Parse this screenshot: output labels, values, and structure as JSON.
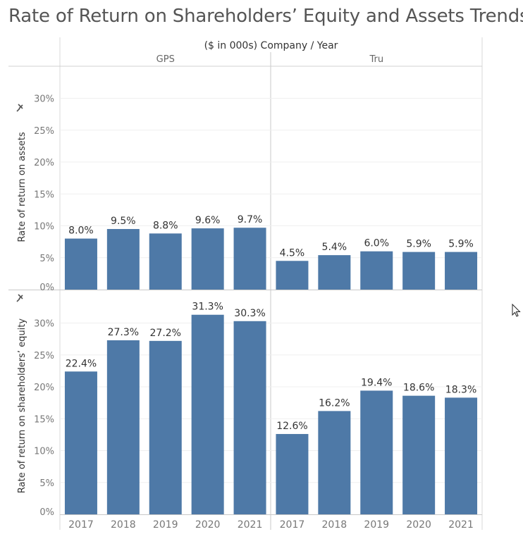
{
  "title": "Rate of Return on Shareholders’ Equity and Assets Trends",
  "chart_data": {
    "type": "bar",
    "header": "($ in 000s)  Company  /  Year",
    "companies": [
      "GPS",
      "Tru"
    ],
    "years": [
      "2017",
      "2018",
      "2019",
      "2020",
      "2021"
    ],
    "bar_color": "#4e79a7",
    "grid": true,
    "panels": [
      {
        "ylabel": "Rate of return on assets",
        "ylim": [
          0,
          0.345
        ],
        "yticks": [
          0,
          0.05,
          0.1,
          0.15,
          0.2,
          0.25,
          0.3
        ],
        "ytick_labels": [
          "0%",
          "5%",
          "10%",
          "15%",
          "20%",
          "25%",
          "30%"
        ],
        "series": [
          {
            "company": "GPS",
            "values": [
              0.08,
              0.095,
              0.088,
              0.096,
              0.097
            ],
            "labels": [
              "8.0%",
              "9.5%",
              "8.8%",
              "9.6%",
              "9.7%"
            ]
          },
          {
            "company": "Tru",
            "values": [
              0.045,
              0.054,
              0.06,
              0.059,
              0.059
            ],
            "labels": [
              "4.5%",
              "5.4%",
              "6.0%",
              "5.9%",
              "5.9%"
            ]
          }
        ]
      },
      {
        "ylabel": "Rate of return on shareholders’ equity",
        "ylim": [
          0,
          0.345
        ],
        "yticks": [
          0,
          0.05,
          0.1,
          0.15,
          0.2,
          0.25,
          0.3
        ],
        "ytick_labels": [
          "0%",
          "5%",
          "10%",
          "15%",
          "20%",
          "25%",
          "30%"
        ],
        "series": [
          {
            "company": "GPS",
            "values": [
              0.224,
              0.273,
              0.272,
              0.313,
              0.303
            ],
            "labels": [
              "22.4%",
              "27.3%",
              "27.2%",
              "31.3%",
              "30.3%"
            ]
          },
          {
            "company": "Tru",
            "values": [
              0.126,
              0.162,
              0.194,
              0.186,
              0.183
            ],
            "labels": [
              "12.6%",
              "16.2%",
              "19.4%",
              "18.6%",
              "18.3%"
            ]
          }
        ]
      }
    ]
  }
}
